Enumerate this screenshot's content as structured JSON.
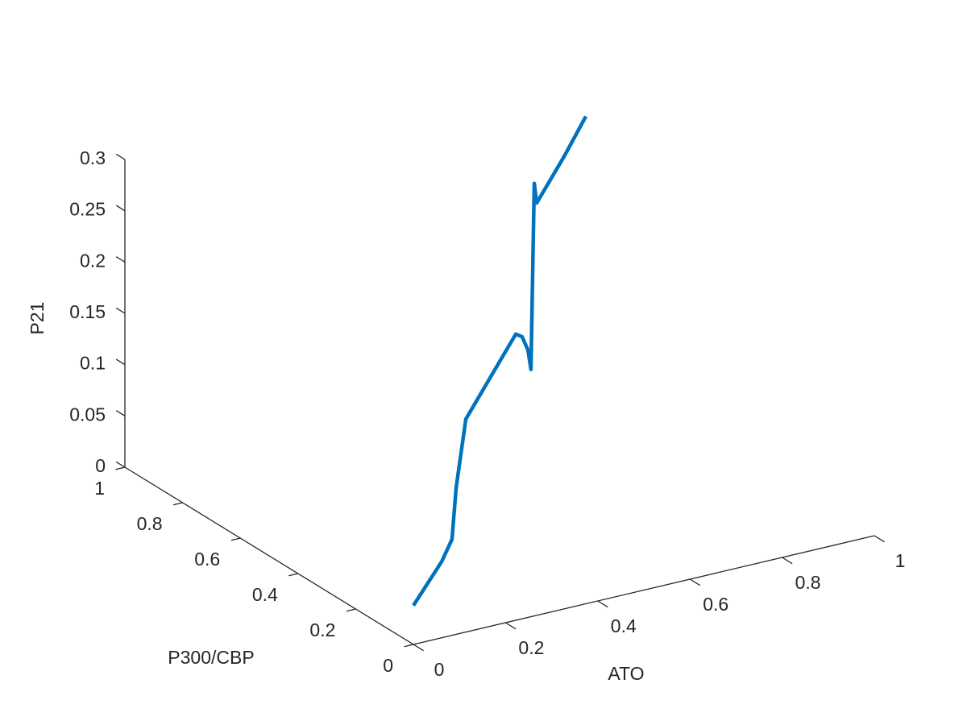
{
  "chart_data": {
    "type": "line3d",
    "xlabel": "ATO",
    "ylabel": "P300/CBP",
    "zlabel": "P21",
    "color": "#0072bd",
    "x": [
      0,
      0.164,
      0.224,
      0.248,
      0.304,
      0.594,
      0.631,
      0.664,
      0.682,
      0.701,
      0.715,
      0.874,
      1.0
    ],
    "y": [
      0,
      0.164,
      0.224,
      0.248,
      0.304,
      0.594,
      0.631,
      0.664,
      0.682,
      0.701,
      0.715,
      0.874,
      1.0
    ],
    "z": [
      0.038,
      0.035,
      0.04,
      0.084,
      0.135,
      0.137,
      0.124,
      0.102,
      0.078,
      0.254,
      0.231,
      0.232,
      0.236
    ],
    "xlim": [
      0,
      1
    ],
    "ylim": [
      0,
      1
    ],
    "zlim": [
      0,
      0.3
    ],
    "xticks": [
      0,
      0.2,
      0.4,
      0.6,
      0.8,
      1
    ],
    "yticks": [
      0,
      0.2,
      0.4,
      0.6,
      0.8,
      1
    ],
    "zticks": [
      0,
      0.05,
      0.1,
      0.15,
      0.2,
      0.25,
      0.3
    ]
  }
}
